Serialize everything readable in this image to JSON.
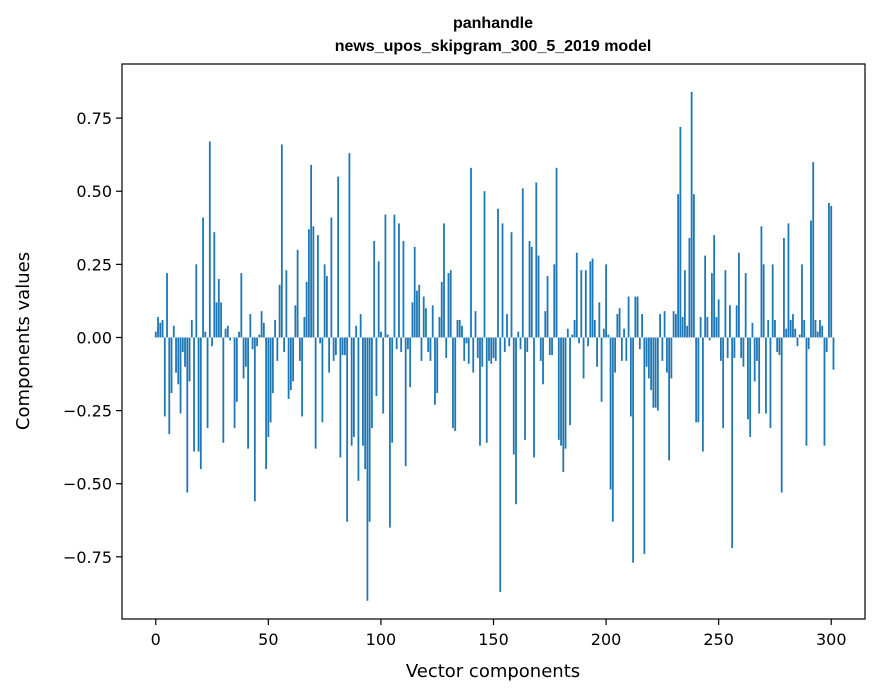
{
  "chart_data": {
    "type": "bar",
    "title": "panhandle",
    "subtitle": "news_upos_skipgram_300_5_2019 model",
    "xlabel": "Vector components",
    "ylabel": "Components values",
    "xlim": [
      -15,
      315
    ],
    "ylim": [
      -0.9625,
      0.935
    ],
    "x_ticks": [
      0,
      50,
      100,
      150,
      200,
      250,
      300
    ],
    "y_ticks": [
      -0.75,
      -0.5,
      -0.25,
      0.0,
      0.25,
      0.5,
      0.75
    ],
    "x_tick_labels": [
      "0",
      "50",
      "100",
      "150",
      "200",
      "250",
      "300"
    ],
    "y_tick_labels": [
      "−0.75",
      "−0.50",
      "−0.25",
      "0.00",
      "0.25",
      "0.50",
      "0.75"
    ],
    "grid": false,
    "bar_color": "#1f77b4",
    "values": [
      0.02,
      0.07,
      0.05,
      0.06,
      -0.27,
      0.22,
      -0.33,
      -0.19,
      0.04,
      -0.12,
      -0.16,
      -0.26,
      -0.05,
      -0.1,
      -0.53,
      -0.15,
      0.06,
      -0.39,
      0.25,
      -0.39,
      -0.45,
      0.41,
      0.02,
      -0.31,
      0.67,
      -0.03,
      0.36,
      0.12,
      0.2,
      0.12,
      -0.36,
      0.03,
      0.04,
      -0.01,
      0.0,
      -0.31,
      -0.22,
      0.02,
      0.22,
      -0.14,
      -0.1,
      -0.38,
      0.08,
      -0.04,
      -0.56,
      -0.03,
      0.01,
      0.09,
      0.05,
      -0.45,
      -0.34,
      -0.29,
      -0.19,
      0.06,
      -0.08,
      0.18,
      0.66,
      -0.05,
      0.23,
      -0.21,
      -0.18,
      -0.15,
      0.11,
      0.3,
      -0.08,
      -0.27,
      0.07,
      0.19,
      0.37,
      0.59,
      0.38,
      -0.38,
      0.35,
      -0.02,
      -0.29,
      0.25,
      0.21,
      -0.12,
      0.41,
      -0.08,
      -0.06,
      0.55,
      -0.41,
      -0.06,
      -0.06,
      -0.63,
      0.63,
      -0.37,
      -0.34,
      0.04,
      -0.49,
      0.08,
      -0.37,
      -0.45,
      -0.9,
      -0.63,
      -0.31,
      0.33,
      -0.2,
      0.26,
      0.02,
      -0.26,
      0.42,
      0.01,
      -0.65,
      -0.36,
      0.42,
      -0.04,
      0.39,
      -0.05,
      0.33,
      -0.44,
      -0.04,
      -0.17,
      0.12,
      0.31,
      0.16,
      0.18,
      -0.08,
      0.14,
      0.1,
      -0.05,
      -0.08,
      0.11,
      -0.23,
      -0.19,
      0.07,
      0.19,
      0.39,
      -0.07,
      0.22,
      0.23,
      -0.31,
      -0.32,
      0.06,
      0.06,
      0.04,
      -0.08,
      -0.02,
      -0.09,
      0.58,
      -0.12,
      0.09,
      -0.07,
      -0.37,
      -0.1,
      0.5,
      -0.36,
      -0.08,
      -0.09,
      -0.07,
      -0.08,
      0.44,
      -0.87,
      0.39,
      -0.05,
      0.08,
      -0.03,
      0.36,
      -0.4,
      -0.57,
      0.02,
      -0.04,
      0.51,
      -0.35,
      -0.05,
      0.33,
      0.31,
      -0.41,
      0.53,
      0.28,
      -0.08,
      -0.16,
      0.09,
      0.21,
      -0.06,
      -0.06,
      0.25,
      0.58,
      -0.35,
      -0.37,
      -0.46,
      -0.38,
      0.03,
      -0.3,
      0.01,
      0.06,
      0.29,
      -0.02,
      0.23,
      -0.14,
      0.23,
      -0.03,
      0.26,
      0.27,
      0.06,
      -0.1,
      0.12,
      -0.22,
      0.03,
      0.25,
      0.01,
      -0.52,
      -0.63,
      -0.12,
      0.08,
      0.1,
      -0.08,
      0.03,
      -0.08,
      0.14,
      -0.27,
      -0.77,
      0.14,
      0.14,
      -0.04,
      0.08,
      -0.74,
      -0.1,
      -0.14,
      -0.18,
      -0.24,
      -0.24,
      -0.25,
      0.08,
      -0.08,
      0.09,
      -0.12,
      -0.42,
      -0.14,
      0.09,
      0.08,
      0.49,
      0.72,
      0.07,
      0.23,
      0.04,
      0.34,
      0.84,
      0.49,
      -0.29,
      -0.29,
      0.07,
      -0.39,
      0.28,
      0.07,
      -0.01,
      0.22,
      0.35,
      0.07,
      0.13,
      -0.08,
      -0.31,
      0.23,
      -0.07,
      0.11,
      -0.72,
      -0.07,
      0.11,
      0.29,
      -0.07,
      -0.1,
      0.22,
      -0.28,
      -0.34,
      0.05,
      -0.15,
      -0.08,
      -0.26,
      0.38,
      0.25,
      -0.26,
      0.06,
      -0.31,
      0.25,
      0.06,
      -0.05,
      -0.06,
      -0.53,
      0.34,
      0.03,
      0.39,
      0.06,
      0.08,
      0.03,
      -0.03,
      0.01,
      0.25,
      0.06,
      -0.37,
      -0.04,
      0.4,
      0.6,
      0.06,
      0.02,
      0.06,
      0.04,
      -0.37,
      -0.05,
      0.46,
      0.45,
      -0.11
    ]
  }
}
